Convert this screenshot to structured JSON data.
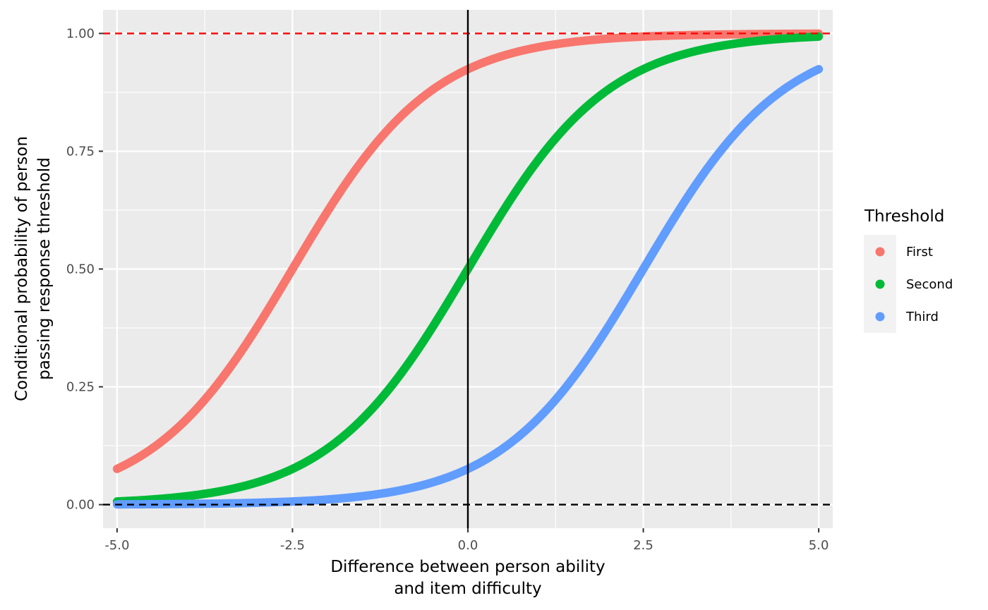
{
  "chart_data": {
    "type": "line",
    "title": "",
    "xlabel": [
      "Difference between person ability",
      "and item difficulty"
    ],
    "ylabel": [
      "Conditional probability of person",
      "passing response threshold"
    ],
    "xlim": [
      -5.2,
      5.2
    ],
    "ylim": [
      -0.05,
      1.05
    ],
    "x_ticks": [
      -5.0,
      -2.5,
      0.0,
      2.5,
      5.0
    ],
    "x_tick_labels": [
      "-5.0",
      "-2.5",
      "0.0",
      "2.5",
      "5.0"
    ],
    "y_ticks": [
      0.0,
      0.25,
      0.5,
      0.75,
      1.0
    ],
    "y_tick_labels": [
      "0.00",
      "0.25",
      "0.50",
      "0.75",
      "1.00"
    ],
    "grid": true,
    "background": "#EBEBEB",
    "x_domain": [
      -5,
      5
    ],
    "series": [
      {
        "name": "First",
        "color": "#F8766D",
        "function": "logistic",
        "location": -2.5,
        "x": [
          -5,
          -4.5,
          -4,
          -3.5,
          -3,
          -2.5,
          -2,
          -1.5,
          -1,
          -0.5,
          0,
          0.5,
          1,
          1.5,
          2,
          2.5,
          3,
          3.5,
          4,
          4.5,
          5
        ],
        "y": [
          0.076,
          0.119,
          0.182,
          0.269,
          0.378,
          0.5,
          0.622,
          0.731,
          0.818,
          0.881,
          0.924,
          0.953,
          0.971,
          0.982,
          0.989,
          0.993,
          0.996,
          0.998,
          0.998,
          0.999,
          0.999
        ]
      },
      {
        "name": "Second",
        "color": "#00BA38",
        "function": "logistic",
        "location": 0,
        "x": [
          -5,
          -4.5,
          -4,
          -3.5,
          -3,
          -2.5,
          -2,
          -1.5,
          -1,
          -0.5,
          0,
          0.5,
          1,
          1.5,
          2,
          2.5,
          3,
          3.5,
          4,
          4.5,
          5
        ],
        "y": [
          0.007,
          0.011,
          0.018,
          0.029,
          0.047,
          0.076,
          0.119,
          0.182,
          0.269,
          0.378,
          0.5,
          0.622,
          0.731,
          0.818,
          0.881,
          0.924,
          0.953,
          0.971,
          0.982,
          0.989,
          0.993
        ]
      },
      {
        "name": "Third",
        "color": "#619CFF",
        "function": "logistic",
        "location": 2.5,
        "x": [
          -5,
          -4.5,
          -4,
          -3.5,
          -3,
          -2.5,
          -2,
          -1.5,
          -1,
          -0.5,
          0,
          0.5,
          1,
          1.5,
          2,
          2.5,
          3,
          3.5,
          4,
          4.5,
          5
        ],
        "y": [
          0.001,
          0.001,
          0.002,
          0.002,
          0.004,
          0.007,
          0.011,
          0.018,
          0.029,
          0.047,
          0.076,
          0.119,
          0.182,
          0.269,
          0.378,
          0.5,
          0.622,
          0.731,
          0.818,
          0.881,
          0.924
        ]
      }
    ],
    "reference_lines": [
      {
        "orientation": "horizontal",
        "value": 1.0,
        "color": "#FF0000",
        "style": "dashed"
      },
      {
        "orientation": "horizontal",
        "value": 0.0,
        "color": "#000000",
        "style": "dashed"
      },
      {
        "orientation": "vertical",
        "value": 0.0,
        "color": "#000000",
        "style": "solid"
      }
    ],
    "legend": {
      "title": "Threshold",
      "position": "right",
      "entries": [
        "First",
        "Second",
        "Third"
      ]
    }
  }
}
